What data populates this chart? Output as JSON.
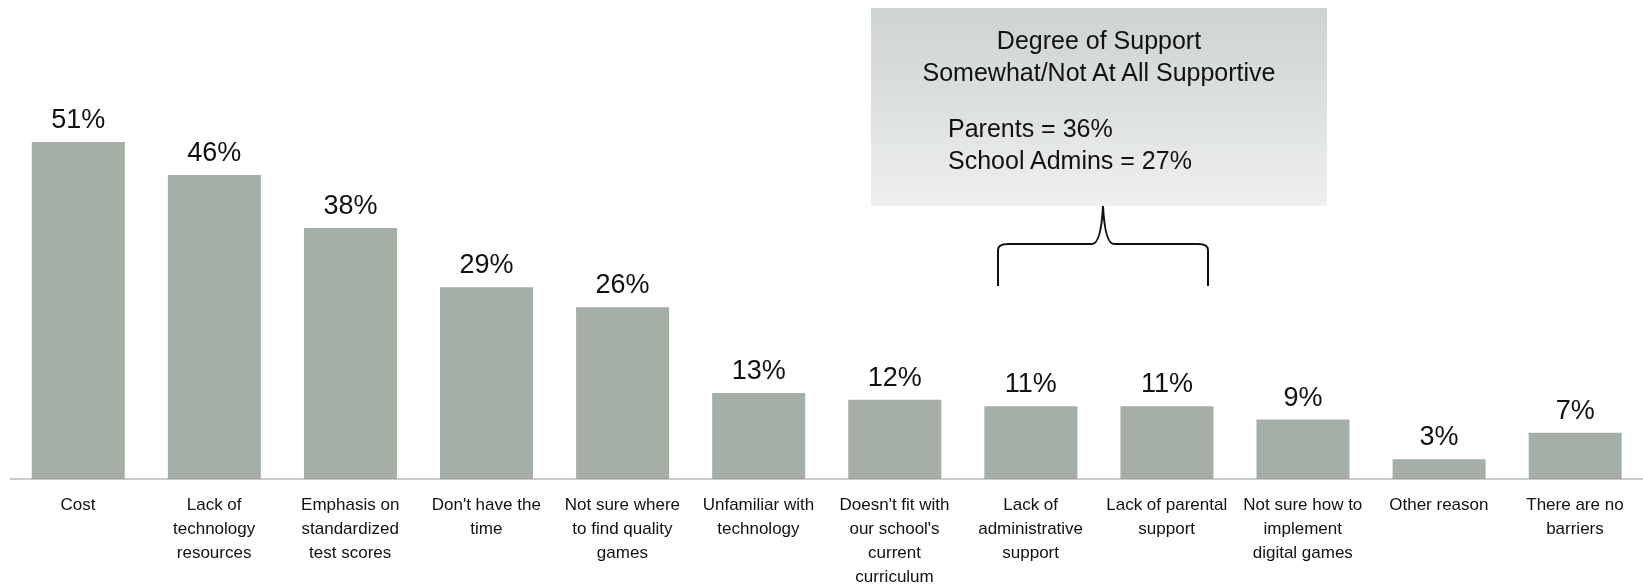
{
  "chart_data": {
    "type": "bar",
    "categories": [
      "Cost",
      "Lack of technology resources",
      "Emphasis on standardized test scores",
      "Don't have the time",
      "Not sure where to find quality games",
      "Unfamiliar with technology",
      "Doesn't fit with our school's current curriculum",
      "Lack of administrative support",
      "Lack of parental support",
      "Not sure how to implement digital games",
      "Other reason",
      "There are no barriers"
    ],
    "values": [
      51,
      46,
      38,
      29,
      26,
      13,
      12,
      11,
      11,
      9,
      3,
      7
    ],
    "value_labels": [
      "51%",
      "46%",
      "38%",
      "29%",
      "26%",
      "13%",
      "12%",
      "11%",
      "11%",
      "9%",
      "3%",
      "7%"
    ],
    "color": "#a6aea8",
    "grid": false,
    "legend": false,
    "annotations": [
      "Degree of Support",
      "Somewhat/Not At All Supportive",
      "Parents = 36%",
      "School Admins = 27%"
    ]
  }
}
